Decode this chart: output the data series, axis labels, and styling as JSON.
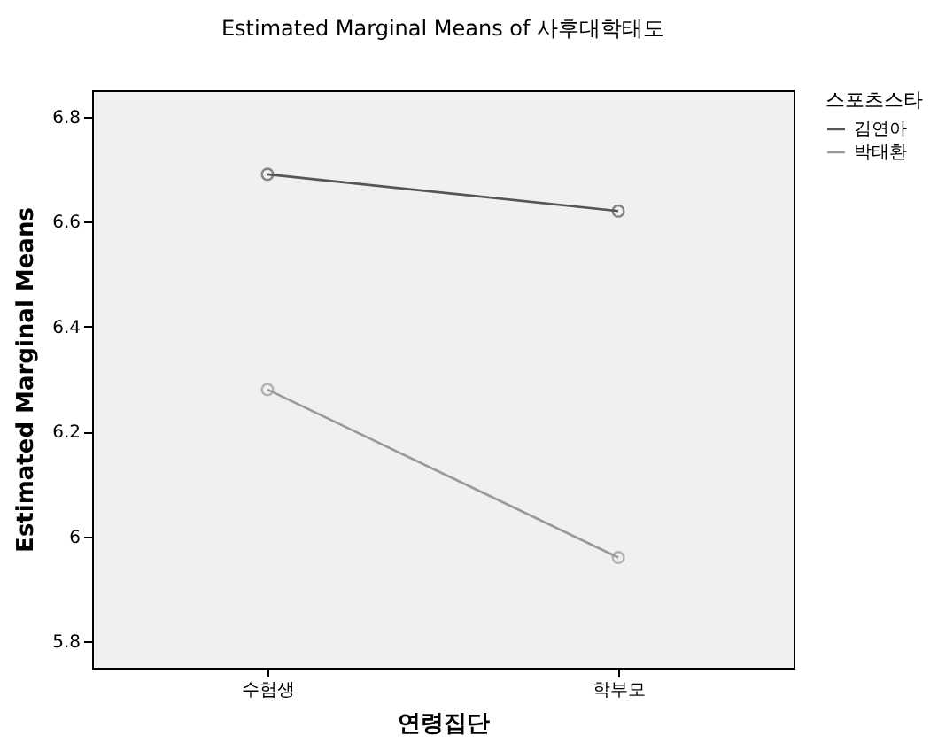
{
  "chart_data": {
    "type": "line",
    "title": "Estimated Marginal Means of 사후대학태도",
    "xlabel": "연령집단",
    "ylabel": "Estimated Marginal Means",
    "legend_title": "스포츠스타",
    "categories": [
      "수험생",
      "학부모"
    ],
    "series": [
      {
        "name": "김연아",
        "color": "#555555",
        "values": [
          6.69,
          6.62
        ]
      },
      {
        "name": "박태환",
        "color": "#999999",
        "values": [
          6.28,
          5.96
        ]
      }
    ],
    "ylim": [
      5.75,
      6.85
    ],
    "yticks": [
      5.8,
      6,
      6.2,
      6.4,
      6.6,
      6.8
    ],
    "grid": false,
    "legend": "top right",
    "marker": "circle",
    "line_style": "solid"
  }
}
